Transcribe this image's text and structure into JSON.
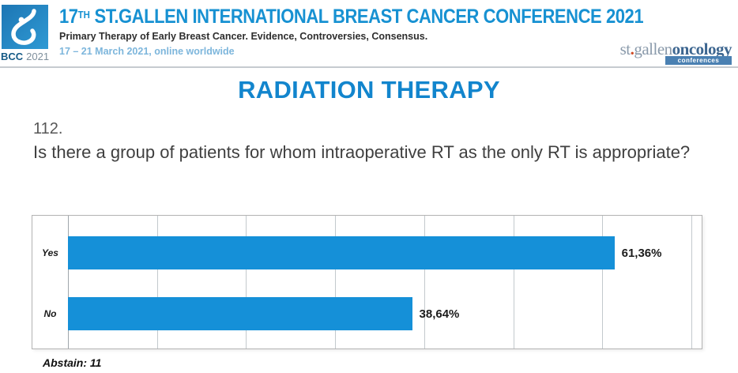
{
  "colors": {
    "accent_blue": "#1791d2",
    "section_title_blue": "#1285cd",
    "bar_blue": "#1590d8",
    "date_light_blue": "#7db6dc",
    "brand_slate": "#8a9aab",
    "brand_oncology_blue": "#3d6690",
    "brand_dot_orange": "#cf4a25"
  },
  "header": {
    "conference_number": "17",
    "conference_ordinal": "TH",
    "conference_title_rest": " ST.GALLEN INTERNATIONAL BREAST CANCER CONFERENCE 2021",
    "subtitle": "Primary Therapy of Early Breast Cancer. Evidence, Controversies, Consensus.",
    "date_line": "17 – 21 March 2021, online worldwide",
    "badge": {
      "bcc": "BCC",
      "year": "2021"
    },
    "brand": {
      "st": "st",
      "dot": ".",
      "gallen": "gallen",
      "oncology": "oncology",
      "conferences": "conferences"
    },
    "logo_icon": "drop-icon"
  },
  "section_title": "RADIATION THERAPY",
  "question": {
    "number": "112.",
    "text": "Is there a group of patients for whom intraoperative RT as the only RT is appropriate?"
  },
  "chart_data": {
    "type": "bar",
    "orientation": "horizontal",
    "title": "",
    "categories": [
      "Yes",
      "No"
    ],
    "values": [
      61.36,
      38.64
    ],
    "value_labels": [
      "61,36%",
      "38,64%"
    ],
    "xlim": [
      0,
      70
    ],
    "gridline_interval": 10,
    "grid": true,
    "legend": false,
    "bar_color": "#1590d8"
  },
  "footer": {
    "abstain": "Abstain: 11"
  }
}
